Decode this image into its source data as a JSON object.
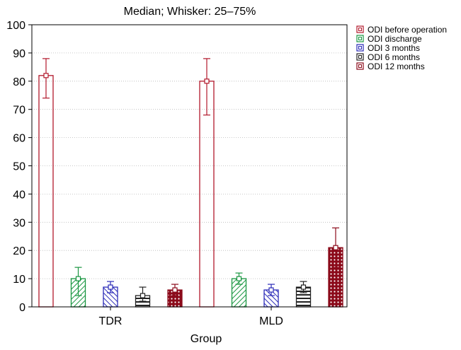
{
  "chart_data": {
    "type": "bar",
    "title": "Median; Whisker: 25–75%",
    "xlabel": "Group",
    "ylabel": "",
    "ylim": [
      0,
      100
    ],
    "yticks": [
      0,
      10,
      20,
      30,
      40,
      50,
      60,
      70,
      80,
      90,
      100
    ],
    "categories": [
      "TDR",
      "MLD"
    ],
    "grid": true,
    "legend_position": "top-right",
    "series": [
      {
        "name": "ODI before operation",
        "color": "#b2182b",
        "pattern": "none",
        "values": [
          82,
          80
        ],
        "q1": [
          74,
          68
        ],
        "q3": [
          88,
          88
        ]
      },
      {
        "name": "ODI discharge",
        "color": "#1a9641",
        "pattern": "diagonal",
        "values": [
          10,
          10
        ],
        "q1": [
          4,
          8
        ],
        "q3": [
          14,
          12
        ]
      },
      {
        "name": "ODI 3 months",
        "color": "#2b2bb8",
        "pattern": "diagonal",
        "values": [
          7,
          6
        ],
        "q1": [
          5,
          4
        ],
        "q3": [
          9,
          8
        ]
      },
      {
        "name": "ODI 6 months",
        "color": "#222222",
        "pattern": "horizontal",
        "values": [
          4,
          7
        ],
        "q1": [
          2,
          5
        ],
        "q3": [
          7,
          9
        ]
      },
      {
        "name": "ODI 12 months",
        "color": "#8b0a1a",
        "pattern": "dots",
        "values": [
          6,
          21
        ],
        "q1": [
          4,
          14
        ],
        "q3": [
          8,
          28
        ]
      }
    ]
  }
}
